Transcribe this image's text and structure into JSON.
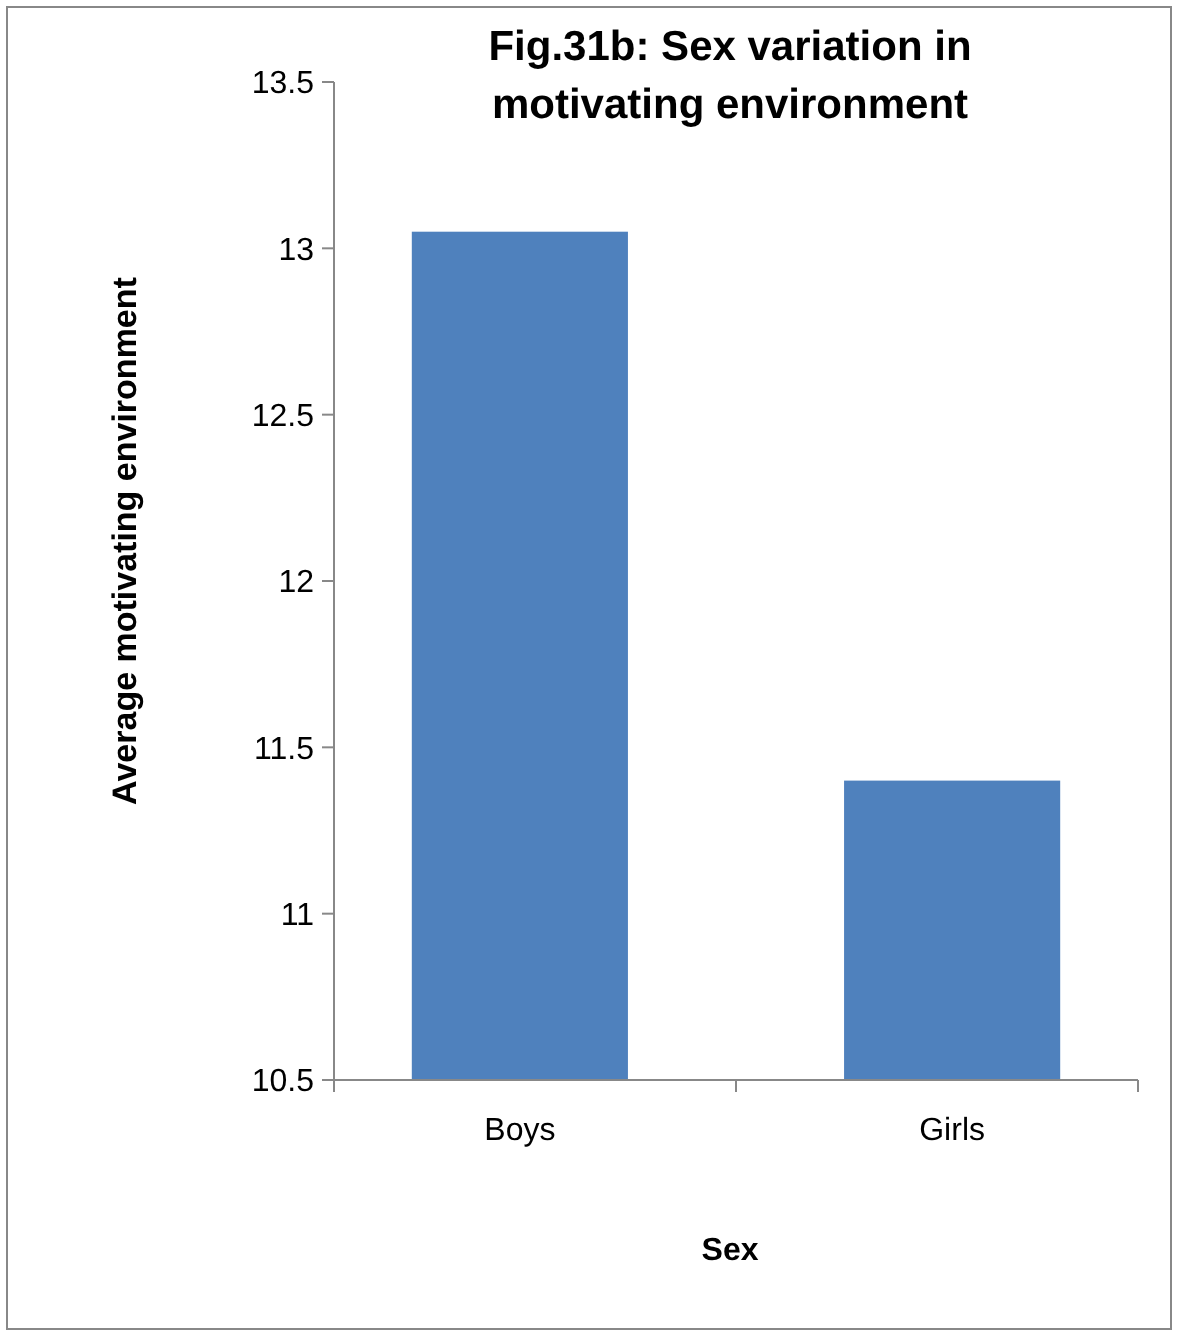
{
  "chart_data": {
    "type": "bar",
    "title": "Fig.31b: Sex variation in motivating environment",
    "xlabel": "Sex",
    "ylabel": "Average motivating environment",
    "categories": [
      "Boys",
      "Girls"
    ],
    "values": [
      13.05,
      11.4
    ],
    "color": "#4f81bd",
    "ylim": [
      10.5,
      13.5
    ],
    "yticks": [
      10.5,
      11,
      11.5,
      12,
      12.5,
      13,
      13.5
    ],
    "grid": false
  }
}
